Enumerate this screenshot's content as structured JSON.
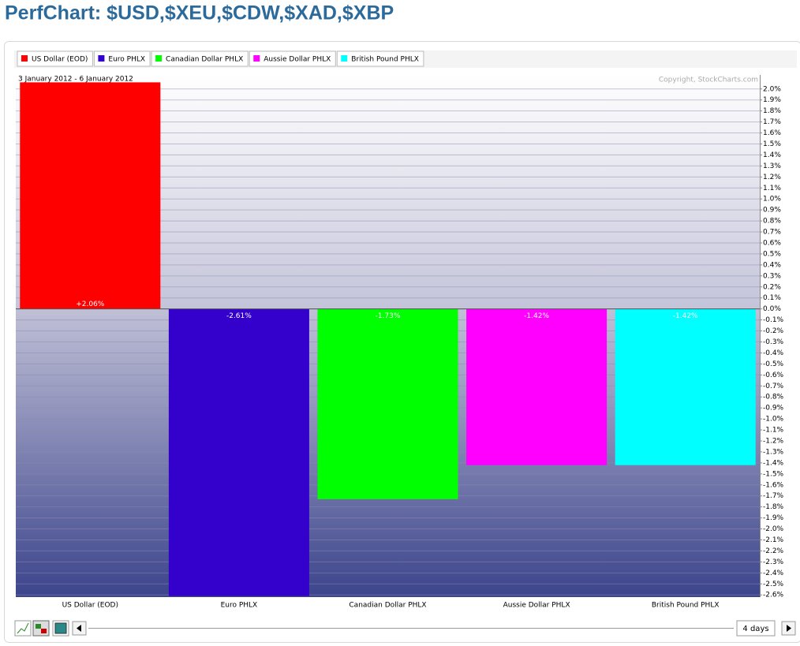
{
  "chart_data": {
    "type": "bar",
    "title": "PerfChart: $USD,$XEU,$CDW,$XAD,$XBP",
    "subtitle": "3 January 2012 - 6 January 2012",
    "copyright": "Copyright, StockCharts.com",
    "categories": [
      "US Dollar (EOD)",
      "Euro PHLX",
      "Canadian Dollar PHLX",
      "Aussie Dollar PHLX",
      "British Pound PHLX"
    ],
    "values": [
      2.06,
      -2.61,
      -1.73,
      -1.42,
      -1.42
    ],
    "value_labels": [
      "+2.06%",
      "-2.61%",
      "-1.73%",
      "-1.42%",
      "-1.42%"
    ],
    "colors": [
      "#ff0000",
      "#3300cc",
      "#00ff00",
      "#ff00ff",
      "#00ffff"
    ],
    "ylim": [
      -2.62,
      2.07
    ],
    "yticks": [
      {
        "value": 2.0,
        "label": "2.0%"
      },
      {
        "value": 1.9,
        "label": "1.9%"
      },
      {
        "value": 1.8,
        "label": "1.8%"
      },
      {
        "value": 1.7,
        "label": "1.7%"
      },
      {
        "value": 1.6,
        "label": "1.6%"
      },
      {
        "value": 1.5,
        "label": "1.5%"
      },
      {
        "value": 1.4,
        "label": "1.4%"
      },
      {
        "value": 1.3,
        "label": "1.3%"
      },
      {
        "value": 1.2,
        "label": "1.2%"
      },
      {
        "value": 1.1,
        "label": "1.1%"
      },
      {
        "value": 1.0,
        "label": "1.0%"
      },
      {
        "value": 0.9,
        "label": "0.9%"
      },
      {
        "value": 0.8,
        "label": "0.8%"
      },
      {
        "value": 0.7,
        "label": "0.7%"
      },
      {
        "value": 0.6,
        "label": "0.6%"
      },
      {
        "value": 0.5,
        "label": "0.5%"
      },
      {
        "value": 0.4,
        "label": "0.4%"
      },
      {
        "value": 0.3,
        "label": "0.3%"
      },
      {
        "value": 0.2,
        "label": "0.2%"
      },
      {
        "value": 0.1,
        "label": "0.1%"
      },
      {
        "value": 0,
        "label": "0.0%"
      },
      {
        "value": -0.1,
        "label": "-0.1%"
      },
      {
        "value": -0.2,
        "label": "-0.2%"
      },
      {
        "value": -0.3,
        "label": "-0.3%"
      },
      {
        "value": -0.4,
        "label": "-0.4%"
      },
      {
        "value": -0.5,
        "label": "-0.5%"
      },
      {
        "value": -0.6,
        "label": "-0.6%"
      },
      {
        "value": -0.7,
        "label": "-0.7%"
      },
      {
        "value": -0.8,
        "label": "-0.8%"
      },
      {
        "value": -0.9,
        "label": "-0.9%"
      },
      {
        "value": -1.0,
        "label": "-1.0%"
      },
      {
        "value": -1.1,
        "label": "-1.1%"
      },
      {
        "value": -1.2,
        "label": "-1.2%"
      },
      {
        "value": -1.3,
        "label": "-1.3%"
      },
      {
        "value": -1.4,
        "label": "-1.4%"
      },
      {
        "value": -1.5,
        "label": "-1.5%"
      },
      {
        "value": -1.6,
        "label": "-1.6%"
      },
      {
        "value": -1.7,
        "label": "-1.7%"
      },
      {
        "value": -1.8,
        "label": "-1.8%"
      },
      {
        "value": -1.9,
        "label": "-1.9%"
      },
      {
        "value": -2.0,
        "label": "-2.0%"
      },
      {
        "value": -2.1,
        "label": "-2.1%"
      },
      {
        "value": -2.2,
        "label": "-2.2%"
      },
      {
        "value": -2.3,
        "label": "-2.3%"
      },
      {
        "value": -2.4,
        "label": "-2.4%"
      },
      {
        "value": -2.5,
        "label": "-2.5%"
      },
      {
        "value": -2.6,
        "label": "-2.6%"
      }
    ],
    "grid": true,
    "period": "4 days"
  }
}
